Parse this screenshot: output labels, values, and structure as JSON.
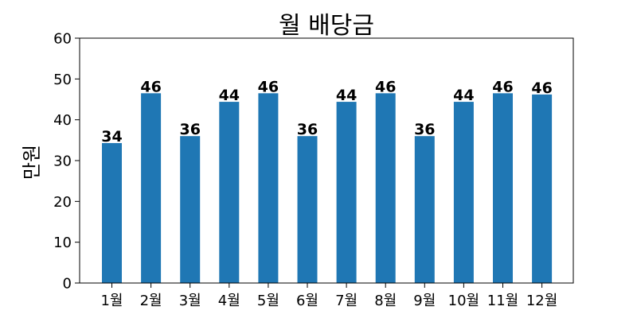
{
  "chart_data": {
    "type": "bar",
    "title": "월 배당금",
    "xlabel": "",
    "ylabel": "만원",
    "categories": [
      "1월",
      "2월",
      "3월",
      "4월",
      "5월",
      "6월",
      "7월",
      "8월",
      "9월",
      "10월",
      "11월",
      "12월"
    ],
    "values": [
      34.3,
      46.5,
      36.0,
      44.4,
      46.5,
      36.0,
      44.4,
      46.5,
      36.0,
      44.4,
      46.5,
      46.2
    ],
    "data_labels": [
      "34",
      "46",
      "36",
      "44",
      "46",
      "36",
      "44",
      "46",
      "36",
      "44",
      "46",
      "46"
    ],
    "ylim": [
      0,
      60
    ],
    "yticks": [
      "0",
      "10",
      "20",
      "30",
      "40",
      "50",
      "60"
    ],
    "grid": false,
    "bar_color": "#1f77b4"
  }
}
